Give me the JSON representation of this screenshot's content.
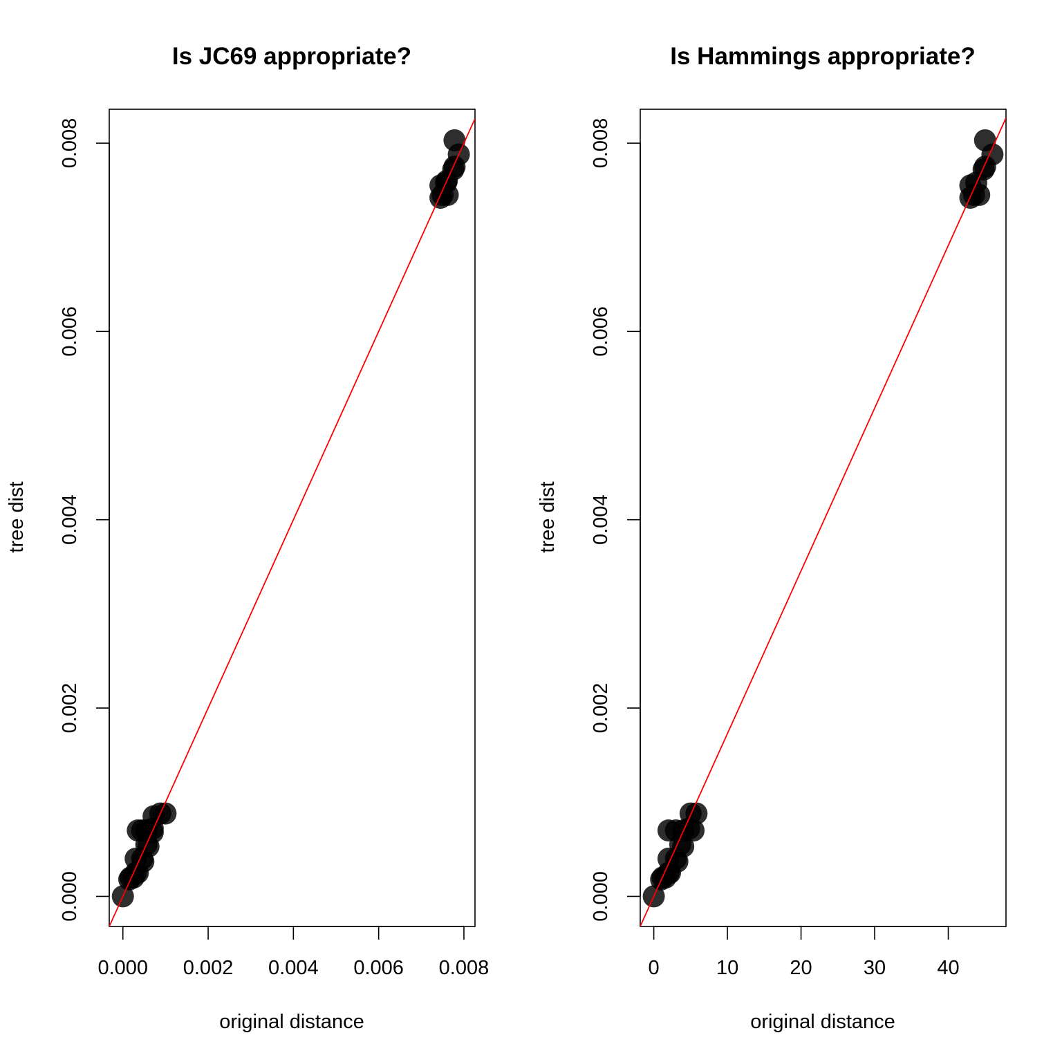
{
  "figure": {
    "panels": [
      {
        "title": "Is JC69 appropriate?",
        "xlabel": "original distance",
        "ylabel": "tree dist"
      },
      {
        "title": "Is Hammings appropriate?",
        "xlabel": "original distance",
        "ylabel": "tree dist"
      }
    ]
  },
  "chart_data": [
    {
      "type": "scatter",
      "title": "Is JC69 appropriate?",
      "xlabel": "original distance",
      "ylabel": "tree dist",
      "xlim": [
        -0.00032,
        0.00826
      ],
      "ylim": [
        -0.00032,
        0.00836
      ],
      "xticks": [
        0,
        0.002,
        0.004,
        0.006,
        0.008
      ],
      "xtick_labels": [
        "0.000",
        "0.002",
        "0.004",
        "0.006",
        "0.008"
      ],
      "yticks": [
        0,
        0.002,
        0.004,
        0.006,
        0.008
      ],
      "ytick_labels": [
        "0.000",
        "0.002",
        "0.004",
        "0.006",
        "0.008"
      ],
      "grid": false,
      "point_color": "#000000",
      "reference_line": {
        "type": "abline",
        "intercept": 0,
        "slope": 1,
        "color": "#ff0000"
      },
      "points": [
        {
          "x": 0.0,
          "y": 0.0
        },
        {
          "x": 0.00015,
          "y": 0.00018
        },
        {
          "x": 0.00018,
          "y": 0.0002
        },
        {
          "x": 0.00025,
          "y": 0.0002
        },
        {
          "x": 0.0003,
          "y": 0.00025
        },
        {
          "x": 0.00035,
          "y": 0.00025
        },
        {
          "x": 0.0003,
          "y": 0.0004
        },
        {
          "x": 0.00045,
          "y": 0.0004
        },
        {
          "x": 0.00048,
          "y": 0.00037
        },
        {
          "x": 0.00055,
          "y": 0.00055
        },
        {
          "x": 0.0006,
          "y": 0.00053
        },
        {
          "x": 0.00035,
          "y": 0.0007
        },
        {
          "x": 0.00045,
          "y": 0.0007
        },
        {
          "x": 0.00055,
          "y": 0.0007
        },
        {
          "x": 0.0007,
          "y": 0.00072
        },
        {
          "x": 0.00088,
          "y": 0.00088
        },
        {
          "x": 0.001,
          "y": 0.00088
        },
        {
          "x": 0.00072,
          "y": 0.00085
        },
        {
          "x": 0.0007,
          "y": 0.00068
        },
        {
          "x": 0.00745,
          "y": 0.00742
        },
        {
          "x": 0.0075,
          "y": 0.00745
        },
        {
          "x": 0.00762,
          "y": 0.00745
        },
        {
          "x": 0.00745,
          "y": 0.00755
        },
        {
          "x": 0.00758,
          "y": 0.00758
        },
        {
          "x": 0.0076,
          "y": 0.0076
        },
        {
          "x": 0.00775,
          "y": 0.00772
        },
        {
          "x": 0.00778,
          "y": 0.00775
        },
        {
          "x": 0.00788,
          "y": 0.00788
        },
        {
          "x": 0.00778,
          "y": 0.00803
        }
      ]
    },
    {
      "type": "scatter",
      "title": "Is Hammings appropriate?",
      "xlabel": "original distance",
      "ylabel": "tree dist",
      "xlim": [
        -1.84,
        47.84
      ],
      "ylim": [
        -0.00032,
        0.00836
      ],
      "xticks": [
        0,
        10,
        20,
        30,
        40
      ],
      "xtick_labels": [
        "0",
        "10",
        "20",
        "30",
        "40"
      ],
      "yticks": [
        0,
        0.002,
        0.004,
        0.006,
        0.008
      ],
      "ytick_labels": [
        "0.000",
        "0.002",
        "0.004",
        "0.006",
        "0.008"
      ],
      "grid": false,
      "point_color": "#000000",
      "reference_line": {
        "type": "line",
        "x": [
          0,
          46
        ],
        "y": [
          0,
          0.00795
        ],
        "color": "#ff0000"
      },
      "points": [
        {
          "x": 0,
          "y": 0.0
        },
        {
          "x": 1,
          "y": 0.00018
        },
        {
          "x": 1.2,
          "y": 0.0002
        },
        {
          "x": 1.6,
          "y": 0.0002
        },
        {
          "x": 2,
          "y": 0.00025
        },
        {
          "x": 2.2,
          "y": 0.00025
        },
        {
          "x": 2,
          "y": 0.0004
        },
        {
          "x": 3,
          "y": 0.0004
        },
        {
          "x": 3.2,
          "y": 0.00037
        },
        {
          "x": 3.6,
          "y": 0.00055
        },
        {
          "x": 4,
          "y": 0.00053
        },
        {
          "x": 2,
          "y": 0.0007
        },
        {
          "x": 3,
          "y": 0.0007
        },
        {
          "x": 4,
          "y": 0.0007
        },
        {
          "x": 4.8,
          "y": 0.00072
        },
        {
          "x": 5,
          "y": 0.00088
        },
        {
          "x": 5.8,
          "y": 0.00088
        },
        {
          "x": 5.4,
          "y": 0.0007
        },
        {
          "x": 43,
          "y": 0.00742
        },
        {
          "x": 43.5,
          "y": 0.00745
        },
        {
          "x": 44.2,
          "y": 0.00745
        },
        {
          "x": 43,
          "y": 0.00755
        },
        {
          "x": 43.8,
          "y": 0.00758
        },
        {
          "x": 44.8,
          "y": 0.00772
        },
        {
          "x": 45,
          "y": 0.00775
        },
        {
          "x": 46,
          "y": 0.00788
        },
        {
          "x": 45,
          "y": 0.00803
        }
      ]
    }
  ]
}
